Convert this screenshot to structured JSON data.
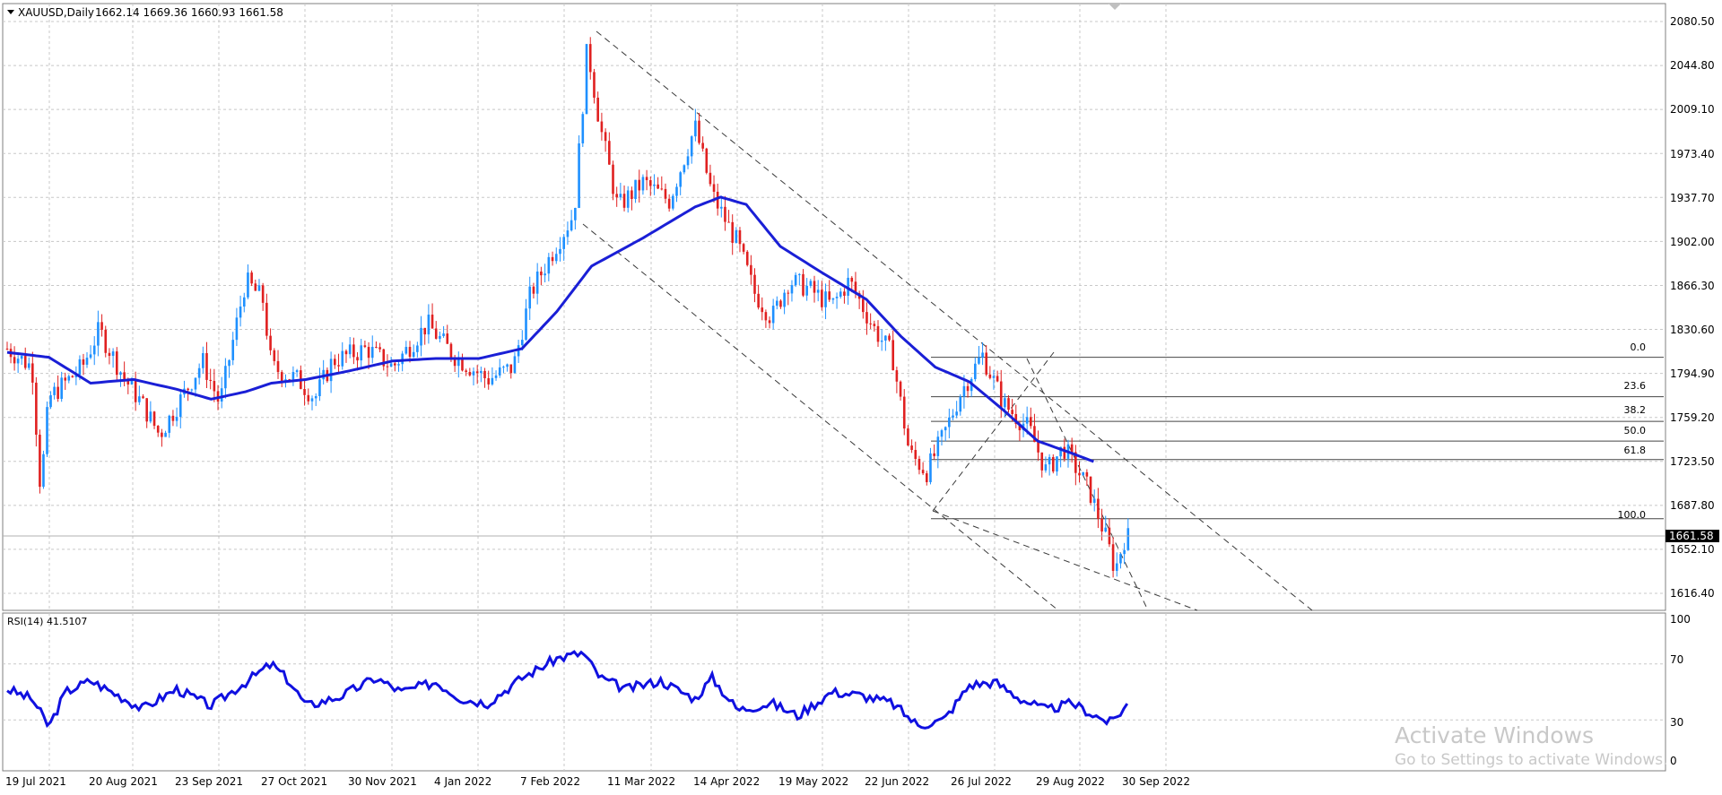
{
  "header": {
    "symbol": "XAUUSD,Daily",
    "ohlc": "1662.14 1669.36 1660.93 1661.58"
  },
  "price_axis": {
    "labels": [
      "2080.50",
      "2044.80",
      "2009.10",
      "1973.40",
      "1937.70",
      "1902.00",
      "1866.30",
      "1830.60",
      "1794.90",
      "1759.20",
      "1723.50",
      "1687.80",
      "1652.10",
      "1616.40"
    ],
    "current_price_tag": "1661.58"
  },
  "fibonacci": {
    "levels": [
      "0.0",
      "23.6",
      "38.2",
      "50.0",
      "61.8",
      "100.0"
    ]
  },
  "rsi_panel": {
    "label": "RSI(14) 41.5107",
    "scale_labels": [
      "100",
      "70",
      "30",
      "0"
    ]
  },
  "time_axis": {
    "labels": [
      "19 Jul 2021",
      "20 Aug 2021",
      "23 Sep 2021",
      "27 Oct 2021",
      "30 Nov 2021",
      "4 Jan 2022",
      "7 Feb 2022",
      "11 Mar 2022",
      "14 Apr 2022",
      "19 May 2022",
      "22 Jun 2022",
      "26 Jul 2022",
      "29 Aug 2022",
      "30 Sep 2022"
    ]
  },
  "watermark": {
    "title": "Activate Windows",
    "subtitle": "Go to Settings to activate Windows."
  },
  "colors": {
    "bull_candle": "#1e90ff",
    "bear_candle": "#e02020",
    "moving_average": "#1a1fd6",
    "rsi_line": "#1010e0",
    "grid": "#c8c8c8",
    "channel": "#3a3a3a"
  },
  "chart_data": {
    "type": "candlestick",
    "symbol": "XAUUSD",
    "timeframe": "Daily",
    "last_bar": {
      "open": 1662.14,
      "high": 1669.36,
      "low": 1660.93,
      "close": 1661.58
    },
    "price_range": [
      1600,
      2090
    ],
    "ma_trend": [
      {
        "date": "19 Jul 2021",
        "price": 1812
      },
      {
        "date": "20 Aug 2021",
        "price": 1787
      },
      {
        "date": "23 Sep 2021",
        "price": 1774
      },
      {
        "date": "27 Oct 2021",
        "price": 1787
      },
      {
        "date": "30 Nov 2021",
        "price": 1797
      },
      {
        "date": "4 Jan 2022",
        "price": 1807
      },
      {
        "date": "7 Feb 2022",
        "price": 1830
      },
      {
        "date": "11 Mar 2022",
        "price": 1882
      },
      {
        "date": "14 Apr 2022",
        "price": 1935
      },
      {
        "date": "19 May 2022",
        "price": 1876
      },
      {
        "date": "22 Jun 2022",
        "price": 1827
      },
      {
        "date": "26 Jul 2022",
        "price": 1770
      },
      {
        "date": "29 Aug 2022",
        "price": 1735
      }
    ],
    "fib_prices": [
      {
        "level": "0.0",
        "price": 1808
      },
      {
        "level": "23.6",
        "price": 1776
      },
      {
        "level": "38.2",
        "price": 1756
      },
      {
        "level": "50.0",
        "price": 1740
      },
      {
        "level": "61.8",
        "price": 1725
      },
      {
        "level": "100.0",
        "price": 1677
      }
    ],
    "rsi": {
      "current": 41.5107,
      "levels": [
        70,
        30
      ],
      "range": [
        0,
        100
      ]
    }
  }
}
